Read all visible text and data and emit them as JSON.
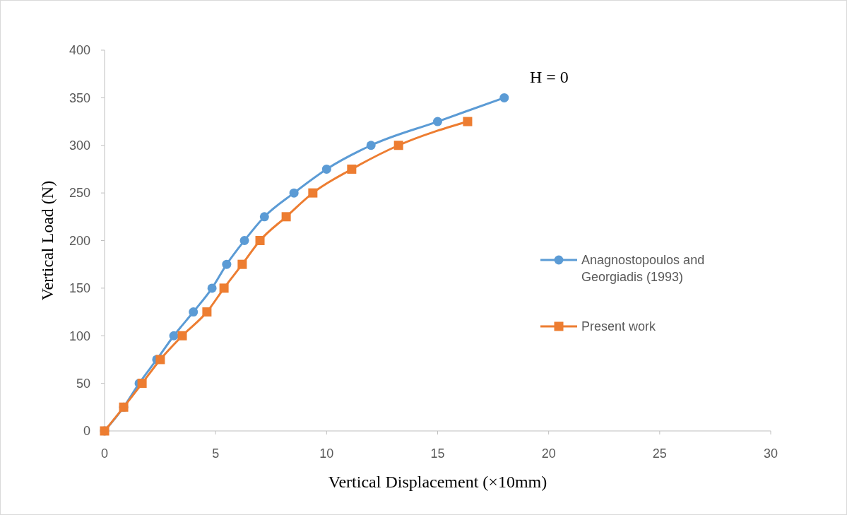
{
  "chart_data": {
    "type": "line",
    "xlabel": "Vertical Displacement (×10mm)",
    "ylabel": "Vertical Load (N)",
    "xlim": [
      0,
      30
    ],
    "xticks": [
      0,
      5,
      10,
      15,
      20,
      25,
      30
    ],
    "ylim": [
      0,
      400
    ],
    "yticks": [
      0,
      50,
      100,
      150,
      200,
      250,
      300,
      350,
      400
    ],
    "grid": false,
    "legend": "right",
    "annotations": [
      "H = 0"
    ],
    "series": [
      {
        "name": "Anagnostopoulos and Georgiadis (1993)",
        "color": "#5b9bd5",
        "marker": "circle",
        "x": [
          0,
          0.86,
          1.56,
          2.35,
          3.12,
          4.0,
          4.84,
          5.5,
          6.3,
          7.2,
          8.53,
          10.0,
          12.0,
          15.0,
          18.0
        ],
        "values": [
          0,
          25,
          50,
          75,
          100,
          125,
          150,
          175,
          200,
          225,
          250,
          275,
          300,
          325,
          350
        ]
      },
      {
        "name": "Present work",
        "color": "#ed7d31",
        "marker": "square",
        "x": [
          0,
          0.86,
          1.69,
          2.51,
          3.5,
          4.61,
          5.38,
          6.2,
          7.0,
          8.18,
          9.38,
          11.13,
          13.24,
          16.35
        ],
        "values": [
          0,
          25,
          50,
          75,
          100,
          125,
          150,
          175,
          200,
          225,
          250,
          275,
          300,
          325
        ]
      }
    ]
  }
}
